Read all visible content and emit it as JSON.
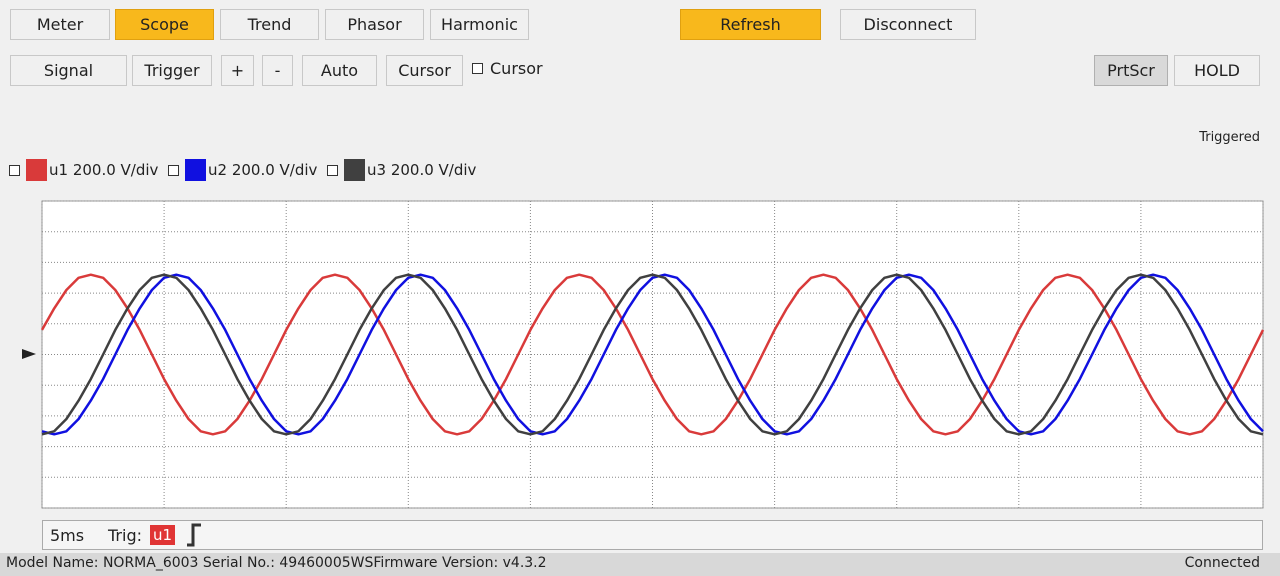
{
  "toolbar": {
    "tabs": [
      "Meter",
      "Scope",
      "Trend",
      "Phasor",
      "Harmonic"
    ],
    "actions": [
      "Refresh",
      "Disconnect"
    ],
    "tools": [
      "Signal",
      "Trigger",
      "+",
      "-",
      "Auto",
      "Cursor"
    ],
    "cursor_checkbox": "Cursor",
    "right_tools": [
      "PrtScr",
      "HOLD"
    ]
  },
  "trigger_state": "Triggered",
  "footer": {
    "timebase": "5ms",
    "trig_label": "Trig:",
    "trig_source": "u1"
  },
  "status": {
    "info": "Model Name:  NORMA_6003 Serial No.:  49460005WSFirmware Version:  v4.3.2",
    "connection": "Connected"
  },
  "chart_data": {
    "type": "line",
    "x": [
      0,
      0.5,
      1,
      1.5,
      2,
      2.5,
      3,
      3.5,
      4,
      4.5,
      5,
      5.5,
      6,
      6.5,
      7,
      7.5,
      8,
      8.5,
      9,
      9.5,
      10,
      10.5,
      11,
      11.5,
      12,
      12.5,
      13,
      13.5,
      14,
      14.5,
      15,
      15.5,
      16,
      16.5,
      17,
      17.5,
      18,
      18.5,
      19,
      19.5,
      20,
      20.5,
      21,
      21.5,
      22,
      22.5,
      23,
      23.5,
      24,
      24.5,
      25,
      25.5,
      26,
      26.5,
      27,
      27.5,
      28,
      28.5,
      29,
      29.5,
      30,
      30.5,
      31,
      31.5,
      32,
      32.5,
      33,
      33.5,
      34,
      34.5,
      35,
      35.5,
      36,
      36.5,
      37,
      37.5,
      38,
      38.5,
      39,
      39.5,
      40,
      40.5,
      41,
      41.5,
      42,
      42.5,
      43,
      43.5,
      44,
      44.5,
      45,
      45.5,
      46,
      46.5,
      47,
      47.5,
      48,
      48.5,
      49,
      49.5,
      50
    ],
    "series": [
      {
        "name": "u1 200.0 V/div",
        "color": "#d93a3a",
        "values": [
          0.8,
          1.5,
          2.1,
          2.5,
          2.6,
          2.5,
          2.1,
          1.5,
          0.8,
          0,
          -0.8,
          -1.5,
          -2.1,
          -2.5,
          -2.6,
          -2.5,
          -2.1,
          -1.5,
          -0.8,
          0,
          0.8,
          1.5,
          2.1,
          2.5,
          2.6,
          2.5,
          2.1,
          1.5,
          0.8,
          0,
          -0.8,
          -1.5,
          -2.1,
          -2.5,
          -2.6,
          -2.5,
          -2.1,
          -1.5,
          -0.8,
          0,
          0.8,
          1.5,
          2.1,
          2.5,
          2.6,
          2.5,
          2.1,
          1.5,
          0.8,
          0,
          -0.8,
          -1.5,
          -2.1,
          -2.5,
          -2.6,
          -2.5,
          -2.1,
          -1.5,
          -0.8,
          0,
          0.8,
          1.5,
          2.1,
          2.5,
          2.6,
          2.5,
          2.1,
          1.5,
          0.8,
          0,
          -0.8,
          -1.5,
          -2.1,
          -2.5,
          -2.6,
          -2.5,
          -2.1,
          -1.5,
          -0.8,
          0,
          0.8,
          1.5,
          2.1,
          2.5,
          2.6,
          2.5,
          2.1,
          1.5,
          0.8,
          0,
          -0.8,
          -1.5,
          -2.1,
          -2.5,
          -2.6,
          -2.5,
          -2.1,
          -1.5,
          -0.8,
          0,
          0.8
        ]
      },
      {
        "name": "u2 200.0 V/div",
        "color": "#1010e0",
        "values": [
          -2.5,
          -2.6,
          -2.5,
          -2.1,
          -1.5,
          -0.8,
          0,
          0.8,
          1.5,
          2.1,
          2.5,
          2.6,
          2.5,
          2.1,
          1.5,
          0.8,
          0,
          -0.8,
          -1.5,
          -2.1,
          -2.5,
          -2.6,
          -2.5,
          -2.1,
          -1.5,
          -0.8,
          0,
          0.8,
          1.5,
          2.1,
          2.5,
          2.6,
          2.5,
          2.1,
          1.5,
          0.8,
          0,
          -0.8,
          -1.5,
          -2.1,
          -2.5,
          -2.6,
          -2.5,
          -2.1,
          -1.5,
          -0.8,
          0,
          0.8,
          1.5,
          2.1,
          2.5,
          2.6,
          2.5,
          2.1,
          1.5,
          0.8,
          0,
          -0.8,
          -1.5,
          -2.1,
          -2.5,
          -2.6,
          -2.5,
          -2.1,
          -1.5,
          -0.8,
          0,
          0.8,
          1.5,
          2.1,
          2.5,
          2.6,
          2.5,
          2.1,
          1.5,
          0.8,
          0,
          -0.8,
          -1.5,
          -2.1,
          -2.5,
          -2.6,
          -2.5,
          -2.1,
          -1.5,
          -0.8,
          0,
          0.8,
          1.5,
          2.1,
          2.5,
          2.6,
          2.5,
          2.1,
          1.5,
          0.8,
          0,
          -0.8,
          -1.5,
          -2.1,
          -2.5
        ]
      },
      {
        "name": "u3 200.0 V/div",
        "color": "#404040",
        "values": [
          -2.6,
          -2.5,
          -2.1,
          -1.5,
          -0.8,
          0,
          0.8,
          1.5,
          2.1,
          2.5,
          2.6,
          2.5,
          2.1,
          1.5,
          0.8,
          0,
          -0.8,
          -1.5,
          -2.1,
          -2.5,
          -2.6,
          -2.5,
          -2.1,
          -1.5,
          -0.8,
          0,
          0.8,
          1.5,
          2.1,
          2.5,
          2.6,
          2.5,
          2.1,
          1.5,
          0.8,
          0,
          -0.8,
          -1.5,
          -2.1,
          -2.5,
          -2.6,
          -2.5,
          -2.1,
          -1.5,
          -0.8,
          0,
          0.8,
          1.5,
          2.1,
          2.5,
          2.6,
          2.5,
          2.1,
          1.5,
          0.8,
          0,
          -0.8,
          -1.5,
          -2.1,
          -2.5,
          -2.6,
          -2.5,
          -2.1,
          -1.5,
          -0.8,
          0,
          0.8,
          1.5,
          2.1,
          2.5,
          2.6,
          2.5,
          2.1,
          1.5,
          0.8,
          0,
          -0.8,
          -1.5,
          -2.1,
          -2.5,
          -2.6,
          -2.5,
          -2.1,
          -1.5,
          -0.8,
          0,
          0.8,
          1.5,
          2.1,
          2.5,
          2.6,
          2.5,
          2.1,
          1.5,
          0.8,
          0,
          -0.8,
          -1.5,
          -2.1,
          -2.5,
          -2.6
        ]
      }
    ],
    "xlim": [
      0,
      50
    ],
    "ylim": [
      -5,
      5
    ],
    "xticks": [
      0,
      5,
      10,
      15,
      20,
      25,
      30,
      35,
      40,
      45,
      50
    ],
    "yticks": [
      -5,
      -4,
      -3,
      -2,
      -1,
      0,
      1,
      2,
      3,
      4,
      5
    ],
    "grid": true
  }
}
